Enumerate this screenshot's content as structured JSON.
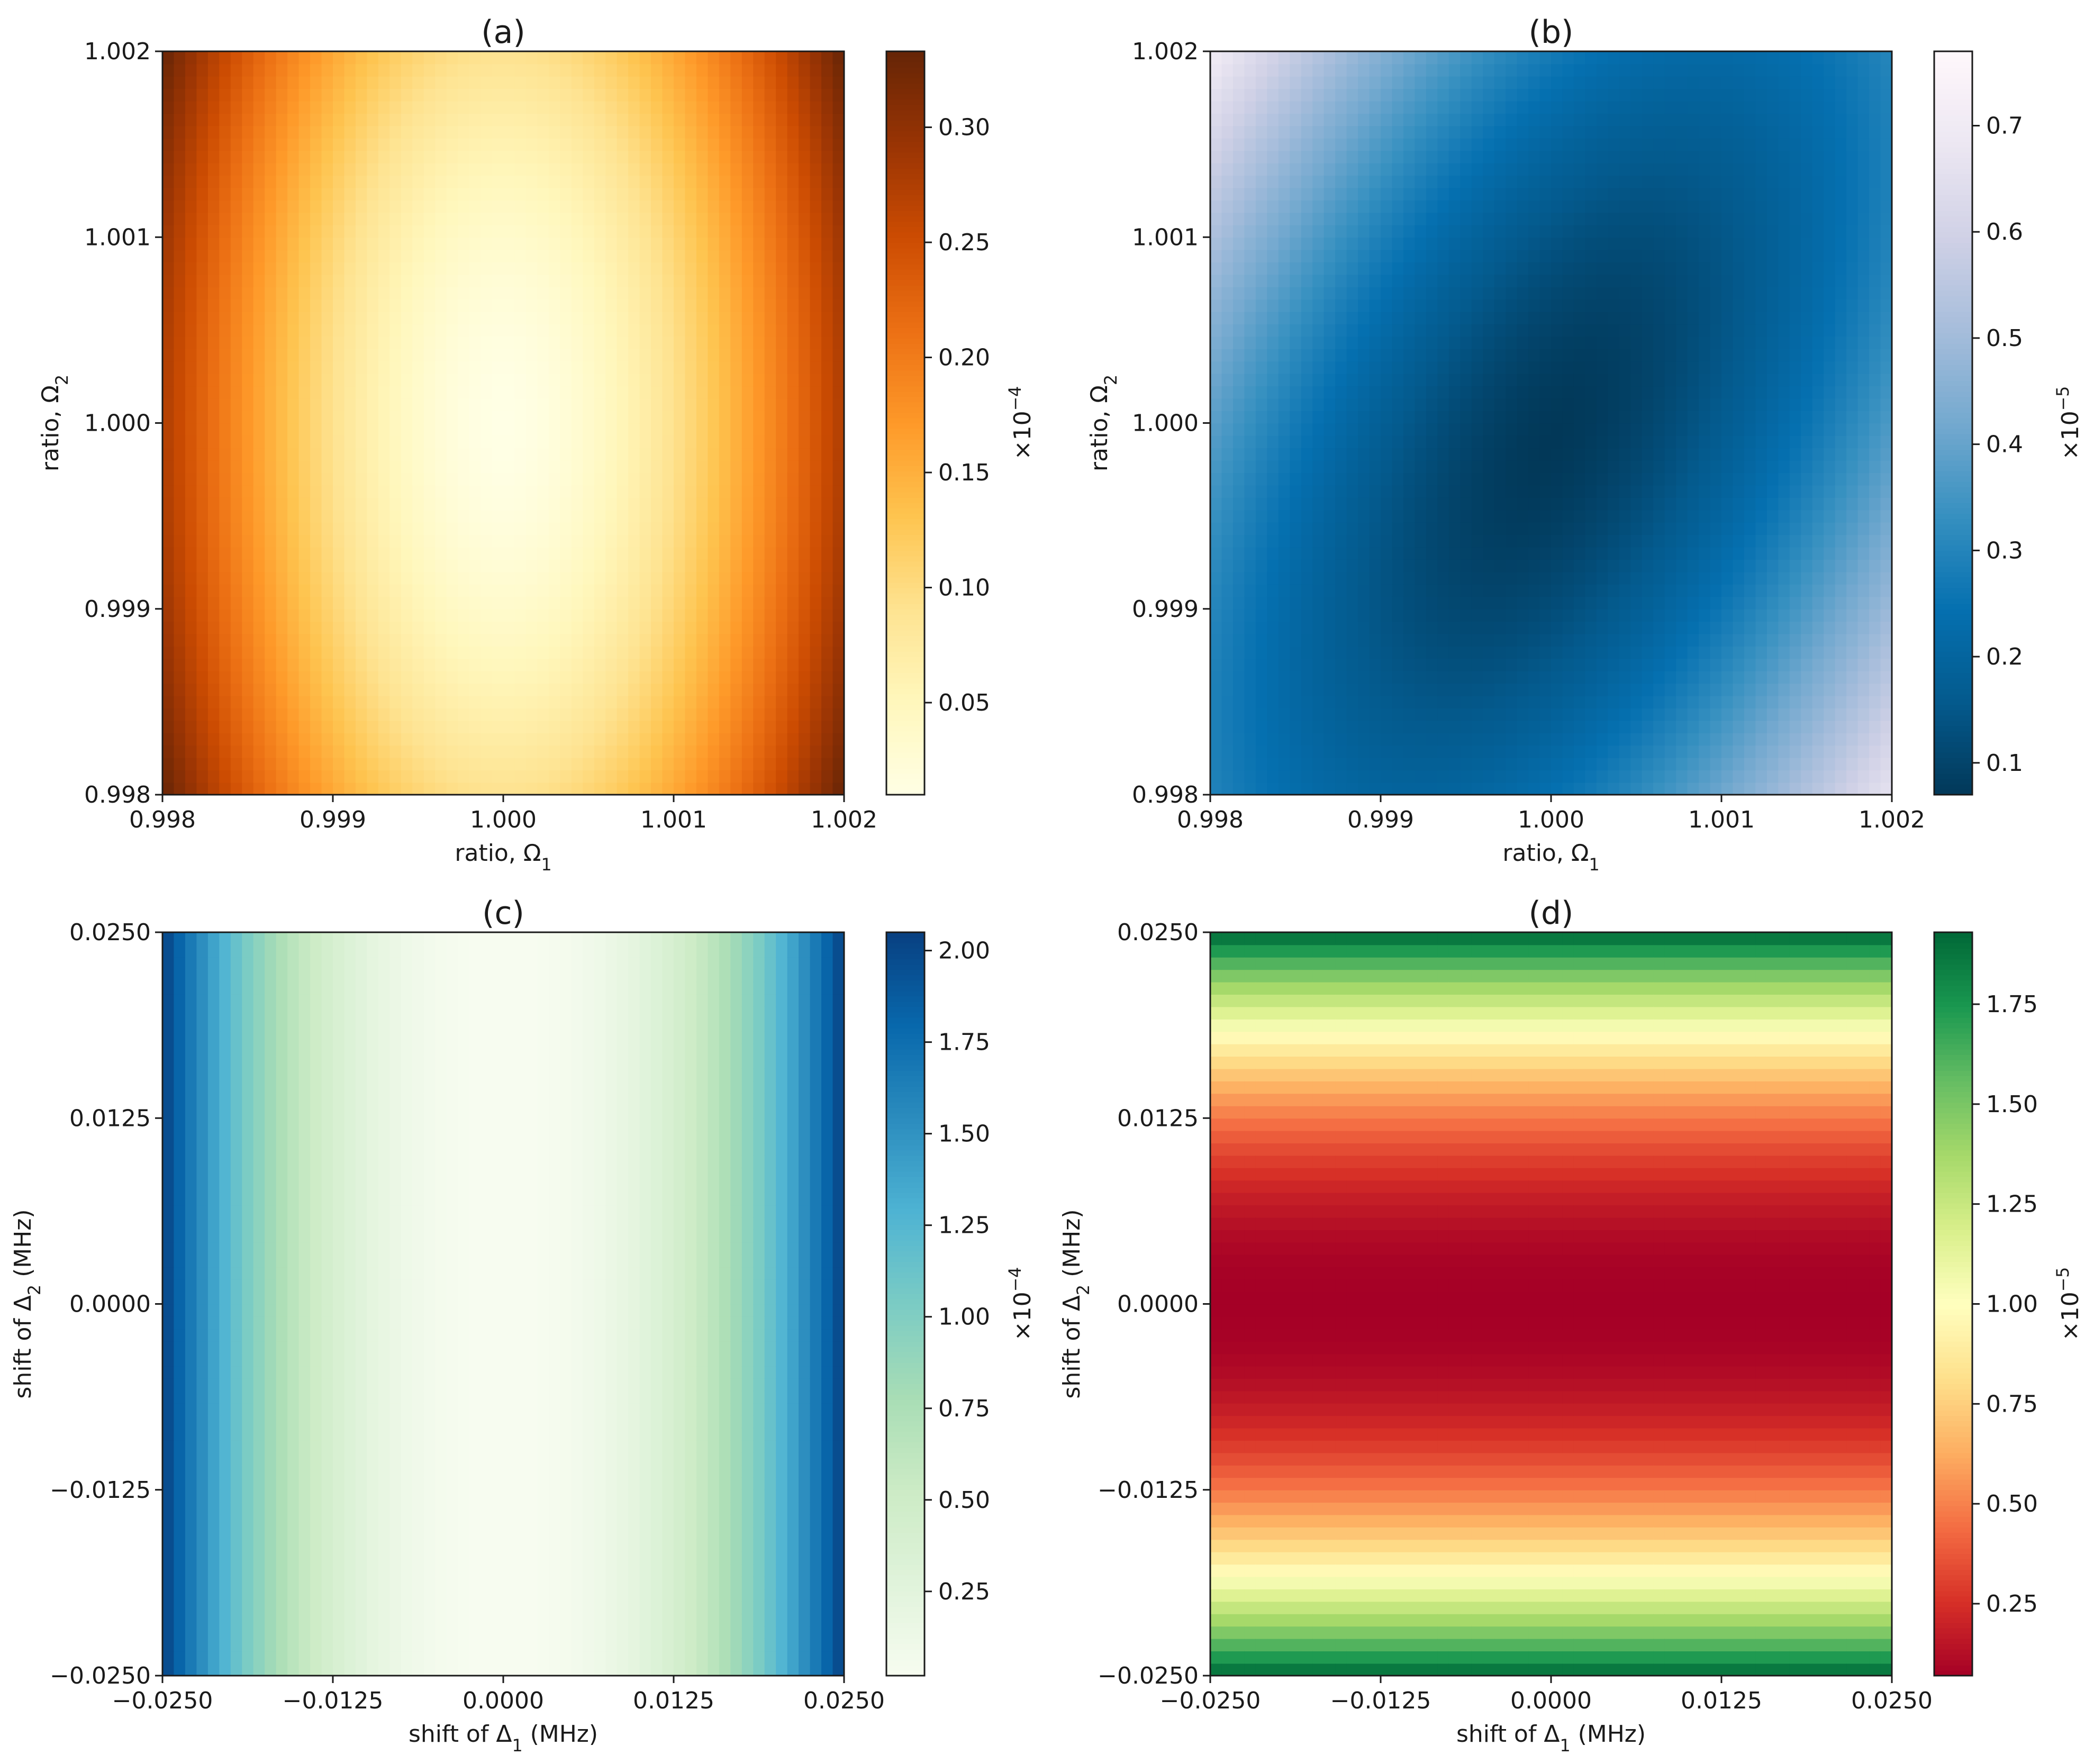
{
  "chart_data": [
    {
      "type": "heatmap",
      "panel_label": "(a)",
      "xlabel_main": "ratio, Ω",
      "xlabel_sub": "1",
      "ylabel_main": "ratio, Ω",
      "ylabel_sub": "2",
      "xlim": [
        0.998,
        1.002
      ],
      "ylim": [
        0.998,
        1.002
      ],
      "xticks": [
        0.998,
        0.999,
        1.0,
        1.001,
        1.002
      ],
      "xtick_labels": [
        "0.998",
        "0.999",
        "1.000",
        "1.001",
        "1.002"
      ],
      "yticks": [
        0.998,
        0.999,
        1.0,
        1.001,
        1.002
      ],
      "ytick_labels": [
        "0.998",
        "0.999",
        "1.000",
        "1.001",
        "1.002"
      ],
      "colorbar": {
        "colormap": "YlOrBr",
        "stops": [
          "#ffffe5",
          "#fff7bc",
          "#fee391",
          "#fec44f",
          "#fe9929",
          "#ec7014",
          "#cc4c02",
          "#993404",
          "#662506"
        ],
        "vmin": 0.01,
        "vmax": 0.333,
        "ticks": [
          0.05,
          0.1,
          0.15,
          0.2,
          0.25,
          0.3
        ],
        "tick_labels": [
          "0.05",
          "0.10",
          "0.15",
          "0.20",
          "0.25",
          "0.30"
        ],
        "multiplier_base": "×10",
        "multiplier_exp": "−4"
      },
      "field": {
        "form": "ellipse",
        "center": [
          1.0,
          1.0
        ],
        "x_weight": 1.0,
        "y_weight": 0.25,
        "cross": 0.0,
        "min": 0.01,
        "max": 0.333
      }
    },
    {
      "type": "heatmap",
      "panel_label": "(b)",
      "xlabel_main": "ratio, Ω",
      "xlabel_sub": "1",
      "ylabel_main": "ratio, Ω",
      "ylabel_sub": "2",
      "xlim": [
        0.998,
        1.002
      ],
      "ylim": [
        0.998,
        1.002
      ],
      "xticks": [
        0.998,
        0.999,
        1.0,
        1.001,
        1.002
      ],
      "xtick_labels": [
        "0.998",
        "0.999",
        "1.000",
        "1.001",
        "1.002"
      ],
      "yticks": [
        0.998,
        0.999,
        1.0,
        1.001,
        1.002
      ],
      "ytick_labels": [
        "0.998",
        "0.999",
        "1.000",
        "1.001",
        "1.002"
      ],
      "colorbar": {
        "colormap": "PuBu_r",
        "stops": [
          "#023858",
          "#045a8d",
          "#0570b0",
          "#3690c0",
          "#74a9cf",
          "#a6bddb",
          "#d0d1e6",
          "#ece7f2",
          "#fff7fb"
        ],
        "vmin": 0.07,
        "vmax": 0.77,
        "ticks": [
          0.1,
          0.2,
          0.3,
          0.4,
          0.5,
          0.6,
          0.7
        ],
        "tick_labels": [
          "0.1",
          "0.2",
          "0.3",
          "0.4",
          "0.5",
          "0.6",
          "0.7"
        ],
        "multiplier_base": "×10",
        "multiplier_exp": "−5"
      },
      "field": {
        "form": "tilted-ellipse",
        "center": [
          1.0,
          0.9999
        ],
        "x_weight": 1.0,
        "y_weight": 0.55,
        "cross": 0.85,
        "min": 0.07,
        "max": 0.77
      }
    },
    {
      "type": "heatmap",
      "panel_label": "(c)",
      "xlabel_main": "shift of Δ",
      "xlabel_sub": "1",
      "xlabel_tail": " (MHz)",
      "ylabel_main": "shift of Δ",
      "ylabel_sub": "2",
      "ylabel_tail": " (MHz)",
      "xlim": [
        -0.025,
        0.025
      ],
      "ylim": [
        -0.025,
        0.025
      ],
      "xticks": [
        -0.025,
        -0.0125,
        0.0,
        0.0125,
        0.025
      ],
      "xtick_labels": [
        "−0.0250",
        "−0.0125",
        "0.0000",
        "0.0125",
        "0.0250"
      ],
      "yticks": [
        -0.025,
        -0.0125,
        0.0,
        0.0125,
        0.025
      ],
      "ytick_labels": [
        "−0.0250",
        "−0.0125",
        "0.0000",
        "0.0125",
        "0.0250"
      ],
      "colorbar": {
        "colormap": "GnBu",
        "stops": [
          "#f7fcf0",
          "#e0f3db",
          "#ccebc5",
          "#a8ddb5",
          "#7bccc4",
          "#4eb3d3",
          "#2b8cbe",
          "#0868ac",
          "#084081"
        ],
        "vmin": 0.02,
        "vmax": 2.05,
        "ticks": [
          0.25,
          0.5,
          0.75,
          1.0,
          1.25,
          1.5,
          1.75,
          2.0
        ],
        "tick_labels": [
          "0.25",
          "0.50",
          "0.75",
          "1.00",
          "1.25",
          "1.50",
          "1.75",
          "2.00"
        ],
        "multiplier_base": "×10",
        "multiplier_exp": "−4"
      },
      "field": {
        "form": "vertical-bands",
        "center": [
          0.0,
          0.0
        ],
        "min": 0.02,
        "max": 2.05
      }
    },
    {
      "type": "heatmap",
      "panel_label": "(d)",
      "xlabel_main": "shift of Δ",
      "xlabel_sub": "1",
      "xlabel_tail": " (MHz)",
      "ylabel_main": "shift of Δ",
      "ylabel_sub": "2",
      "ylabel_tail": " (MHz)",
      "xlim": [
        -0.025,
        0.025
      ],
      "ylim": [
        -0.025,
        0.025
      ],
      "xticks": [
        -0.025,
        -0.0125,
        0.0,
        0.0125,
        0.025
      ],
      "xtick_labels": [
        "−0.0250",
        "−0.0125",
        "0.0000",
        "0.0125",
        "0.0250"
      ],
      "yticks": [
        -0.025,
        -0.0125,
        0.0,
        0.0125,
        0.025
      ],
      "ytick_labels": [
        "−0.0250",
        "−0.0125",
        "0.0000",
        "0.0125",
        "0.0250"
      ],
      "colorbar": {
        "colormap": "RdYlGn",
        "stops": [
          "#a50026",
          "#d73027",
          "#f46d43",
          "#fdae61",
          "#fee08b",
          "#ffffbf",
          "#d9ef8b",
          "#a6d96a",
          "#66bd63",
          "#1a9850",
          "#006837"
        ],
        "vmin": 0.07,
        "vmax": 1.93,
        "ticks": [
          0.25,
          0.5,
          0.75,
          1.0,
          1.25,
          1.5,
          1.75
        ],
        "tick_labels": [
          "0.25",
          "0.50",
          "0.75",
          "1.00",
          "1.25",
          "1.50",
          "1.75"
        ],
        "multiplier_base": "×10",
        "multiplier_exp": "−5"
      },
      "field": {
        "form": "horizontal-bands",
        "center": [
          0.0,
          0.0
        ],
        "min": 0.07,
        "max": 1.93
      }
    }
  ]
}
